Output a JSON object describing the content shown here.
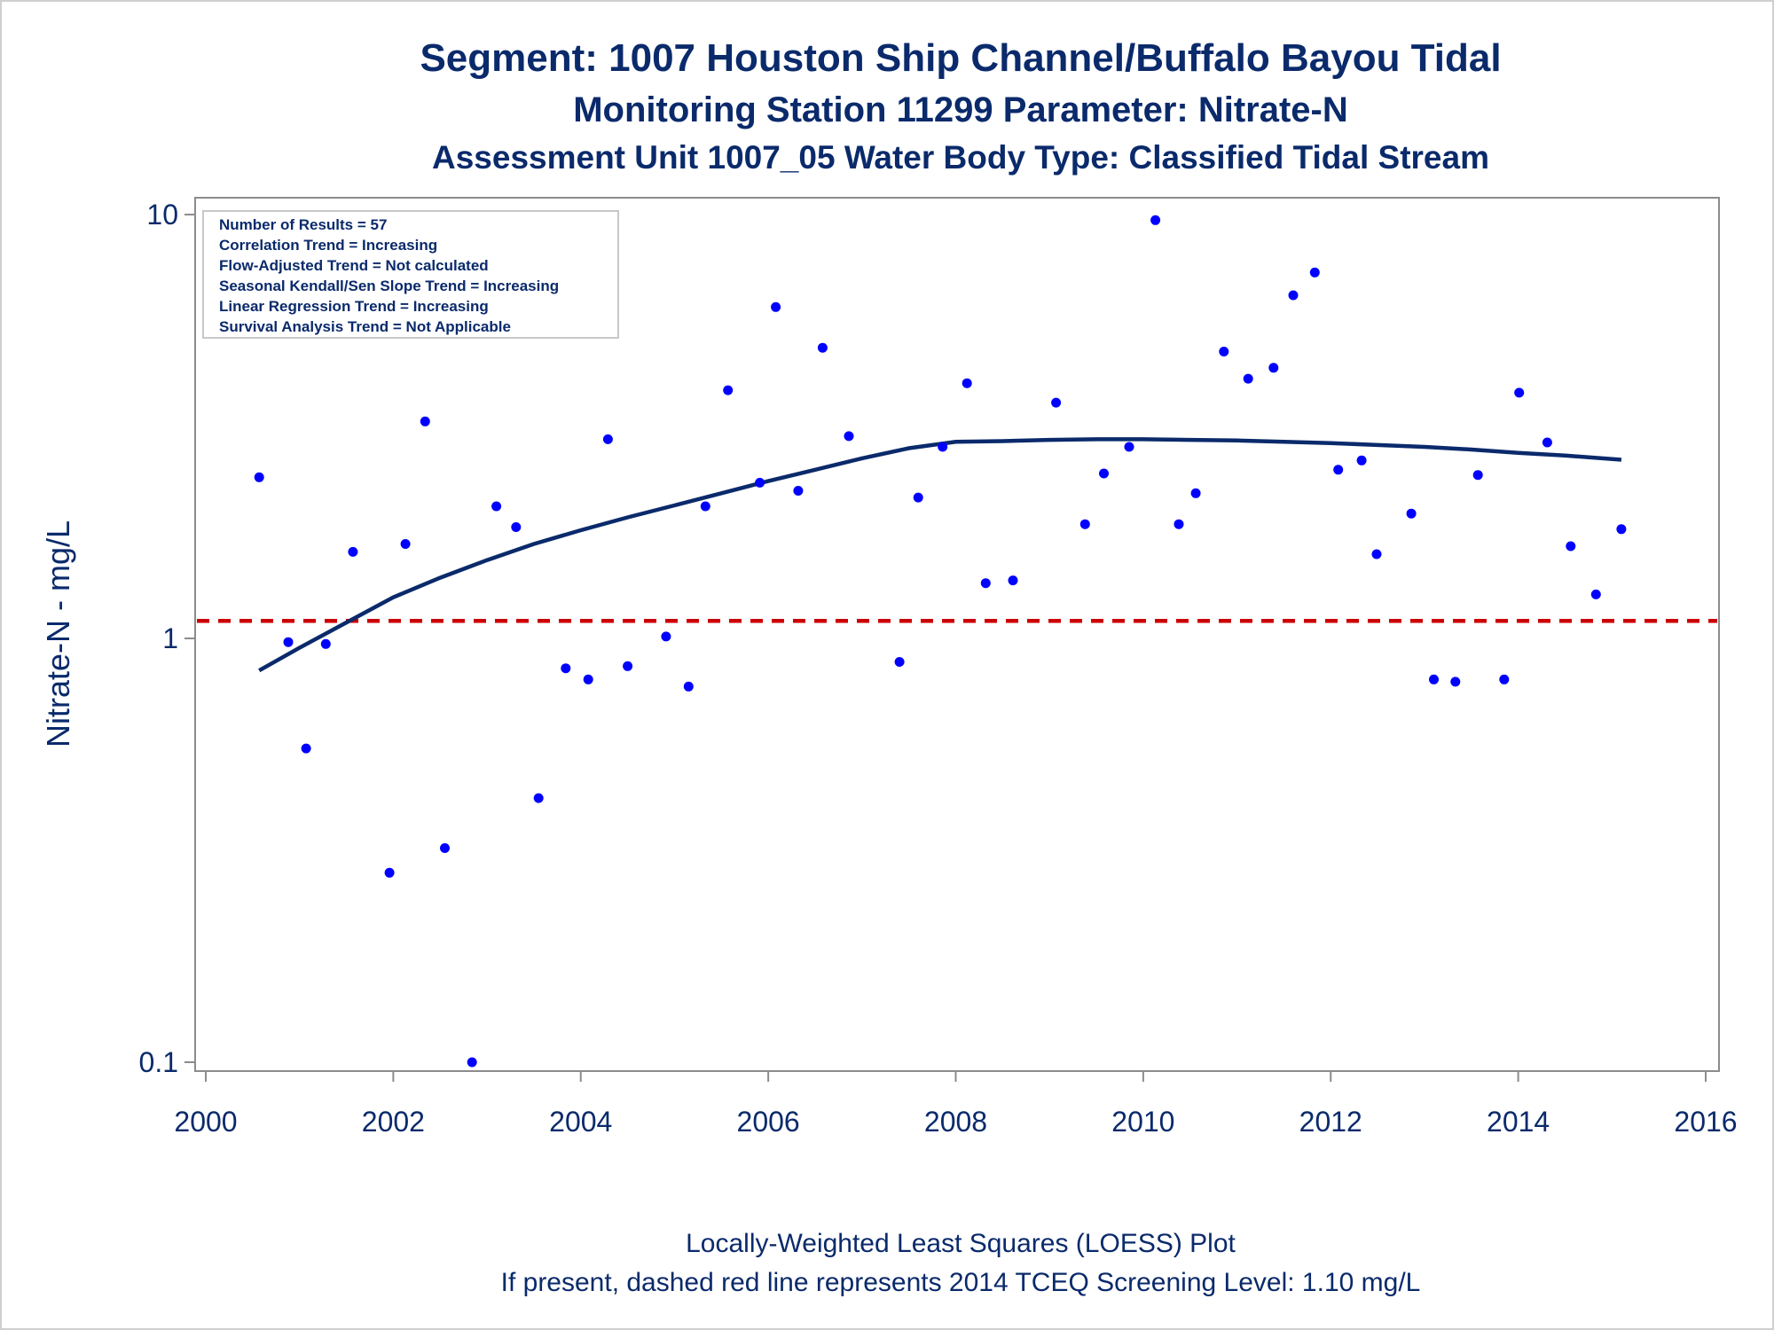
{
  "chart_data": {
    "type": "scatter",
    "title": "Segment: 1007  Houston Ship Channel/Buffalo Bayou Tidal",
    "subtitle_1": "Monitoring Station 11299 Parameter: Nitrate-N",
    "subtitle_2": "Assessment Unit 1007_05   Water Body Type: Classified Tidal Stream",
    "ylabel": "Nitrate-N - mg/L",
    "xlabel": "",
    "yscale": "log",
    "xlim": [
      2000,
      2016
    ],
    "ylim": [
      0.1,
      10
    ],
    "x_ticks": [
      "2000",
      "2002",
      "2004",
      "2006",
      "2008",
      "2010",
      "2012",
      "2014",
      "2016"
    ],
    "y_ticks": [
      "0.1",
      "1",
      "10"
    ],
    "stats_box": [
      "Number of Results = 57",
      "Correlation Trend = Increasing",
      "Flow-Adjusted Trend = Not calculated",
      "Seasonal Kendall/Sen Slope Trend = Increasing",
      "Linear Regression Trend = Increasing",
      "Survival Analysis Trend = Not Applicable"
    ],
    "footnote_1": "Locally-Weighted Least Squares (LOESS) Plot",
    "footnote_2": "If present, dashed red line represents 2014 TCEQ Screening Level: 1.10 mg/L",
    "screening_level": 1.1,
    "colors": {
      "points": "#0000ff",
      "loess": "#0a2a6b",
      "screening": "#cc0000",
      "text": "#0a2a6b"
    },
    "points": [
      {
        "x": 2000.57,
        "y": 2.4
      },
      {
        "x": 2000.88,
        "y": 0.98
      },
      {
        "x": 2001.07,
        "y": 0.55
      },
      {
        "x": 2001.28,
        "y": 0.97
      },
      {
        "x": 2001.57,
        "y": 1.6
      },
      {
        "x": 2001.96,
        "y": 0.28
      },
      {
        "x": 2002.13,
        "y": 1.67
      },
      {
        "x": 2002.34,
        "y": 3.25
      },
      {
        "x": 2002.55,
        "y": 0.32
      },
      {
        "x": 2002.84,
        "y": 0.1
      },
      {
        "x": 2003.1,
        "y": 2.05
      },
      {
        "x": 2003.31,
        "y": 1.83
      },
      {
        "x": 2003.55,
        "y": 0.42
      },
      {
        "x": 2003.84,
        "y": 0.85
      },
      {
        "x": 2004.08,
        "y": 0.8
      },
      {
        "x": 2004.29,
        "y": 2.95
      },
      {
        "x": 2004.5,
        "y": 0.86
      },
      {
        "x": 2004.91,
        "y": 1.01
      },
      {
        "x": 2005.15,
        "y": 0.77
      },
      {
        "x": 2005.33,
        "y": 2.05
      },
      {
        "x": 2005.57,
        "y": 3.85
      },
      {
        "x": 2005.91,
        "y": 2.33
      },
      {
        "x": 2006.08,
        "y": 6.05
      },
      {
        "x": 2006.32,
        "y": 2.23
      },
      {
        "x": 2006.58,
        "y": 4.85
      },
      {
        "x": 2006.86,
        "y": 3.0
      },
      {
        "x": 2007.4,
        "y": 0.88
      },
      {
        "x": 2007.6,
        "y": 2.15
      },
      {
        "x": 2007.86,
        "y": 2.83
      },
      {
        "x": 2008.12,
        "y": 4.0
      },
      {
        "x": 2008.32,
        "y": 1.35
      },
      {
        "x": 2008.61,
        "y": 1.37
      },
      {
        "x": 2009.07,
        "y": 3.6
      },
      {
        "x": 2009.38,
        "y": 1.86
      },
      {
        "x": 2009.58,
        "y": 2.45
      },
      {
        "x": 2009.85,
        "y": 2.83
      },
      {
        "x": 2010.13,
        "y": 9.7
      },
      {
        "x": 2010.38,
        "y": 1.86
      },
      {
        "x": 2010.56,
        "y": 2.2
      },
      {
        "x": 2010.86,
        "y": 4.75
      },
      {
        "x": 2011.12,
        "y": 4.1
      },
      {
        "x": 2011.39,
        "y": 4.35
      },
      {
        "x": 2011.6,
        "y": 6.45
      },
      {
        "x": 2011.83,
        "y": 7.3
      },
      {
        "x": 2012.08,
        "y": 2.5
      },
      {
        "x": 2012.33,
        "y": 2.63
      },
      {
        "x": 2012.49,
        "y": 1.58
      },
      {
        "x": 2012.86,
        "y": 1.97
      },
      {
        "x": 2013.1,
        "y": 0.8
      },
      {
        "x": 2013.33,
        "y": 0.79
      },
      {
        "x": 2013.57,
        "y": 2.43
      },
      {
        "x": 2013.85,
        "y": 0.8
      },
      {
        "x": 2014.01,
        "y": 3.8
      },
      {
        "x": 2014.31,
        "y": 2.9
      },
      {
        "x": 2014.56,
        "y": 1.65
      },
      {
        "x": 2014.83,
        "y": 1.27
      },
      {
        "x": 2015.1,
        "y": 1.81
      }
    ],
    "loess": [
      {
        "x": 2000.57,
        "y": 0.84
      },
      {
        "x": 2001.0,
        "y": 0.95
      },
      {
        "x": 2001.5,
        "y": 1.09
      },
      {
        "x": 2002.0,
        "y": 1.25
      },
      {
        "x": 2002.5,
        "y": 1.39
      },
      {
        "x": 2003.0,
        "y": 1.53
      },
      {
        "x": 2003.5,
        "y": 1.67
      },
      {
        "x": 2004.0,
        "y": 1.8
      },
      {
        "x": 2004.5,
        "y": 1.93
      },
      {
        "x": 2005.0,
        "y": 2.06
      },
      {
        "x": 2005.5,
        "y": 2.2
      },
      {
        "x": 2006.0,
        "y": 2.35
      },
      {
        "x": 2006.5,
        "y": 2.5
      },
      {
        "x": 2007.0,
        "y": 2.66
      },
      {
        "x": 2007.5,
        "y": 2.81
      },
      {
        "x": 2008.0,
        "y": 2.91
      },
      {
        "x": 2008.5,
        "y": 2.92
      },
      {
        "x": 2009.0,
        "y": 2.94
      },
      {
        "x": 2009.5,
        "y": 2.95
      },
      {
        "x": 2010.0,
        "y": 2.95
      },
      {
        "x": 2010.5,
        "y": 2.94
      },
      {
        "x": 2011.0,
        "y": 2.93
      },
      {
        "x": 2011.5,
        "y": 2.91
      },
      {
        "x": 2012.0,
        "y": 2.89
      },
      {
        "x": 2012.5,
        "y": 2.86
      },
      {
        "x": 2013.0,
        "y": 2.83
      },
      {
        "x": 2013.5,
        "y": 2.79
      },
      {
        "x": 2014.0,
        "y": 2.74
      },
      {
        "x": 2014.5,
        "y": 2.7
      },
      {
        "x": 2015.1,
        "y": 2.64
      }
    ]
  }
}
